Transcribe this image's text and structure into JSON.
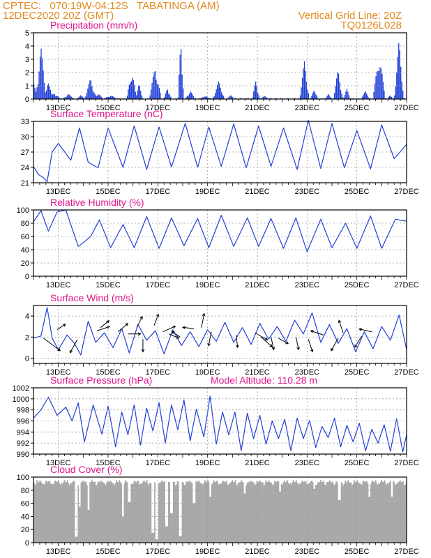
{
  "header": {
    "line1_left": "CPTEC:   070:19W-04:12S   TABATINGA (AM)",
    "line2_left": "12DEC2020 20Z (GMT)",
    "line1_right": "Vertical Grid Line: 20Z",
    "line2_right": "TQ0126L028"
  },
  "colors": {
    "header": "#e08a1e",
    "title": "#e0168c",
    "series": "#1f3fd8",
    "grid": "#9a9a9a",
    "cloud": "#a9a9a9",
    "arrow": "#000000"
  },
  "chart_data": [
    {
      "type": "bar",
      "title": "Precipitation (mm/h)",
      "xlim": [
        0,
        15.0
      ],
      "ylim": [
        0,
        5
      ],
      "yticks": [
        0,
        1,
        2,
        3,
        4,
        5
      ],
      "xticks": [
        "13DEC",
        "15DEC",
        "17DEC",
        "19DEC",
        "21DEC",
        "23DEC",
        "25DEC",
        "27DEC"
      ],
      "bursts": [
        [
          0.03,
          1.3,
          0.3
        ],
        [
          0.3,
          4.1,
          0.22
        ],
        [
          0.58,
          1.4,
          0.22
        ],
        [
          0.85,
          0.5,
          0.25
        ],
        [
          1.4,
          0.4,
          0.25
        ],
        [
          1.9,
          0.3,
          0.2
        ],
        [
          2.3,
          1.6,
          0.25
        ],
        [
          2.6,
          0.5,
          0.2
        ],
        [
          3.1,
          0.3,
          0.3
        ],
        [
          3.95,
          2.4,
          0.2
        ],
        [
          4.25,
          1.2,
          0.15
        ],
        [
          4.9,
          2.6,
          0.25
        ],
        [
          5.4,
          1.0,
          0.15
        ],
        [
          5.93,
          5.0,
          0.12
        ],
        [
          6.3,
          0.7,
          0.2
        ],
        [
          6.9,
          0.3,
          0.2
        ],
        [
          7.45,
          1.4,
          0.25
        ],
        [
          7.95,
          0.3,
          0.2
        ],
        [
          8.95,
          1.6,
          0.15
        ],
        [
          9.3,
          0.25,
          0.2
        ],
        [
          10.9,
          3.0,
          0.2
        ],
        [
          11.3,
          0.9,
          0.15
        ],
        [
          11.85,
          0.4,
          0.15
        ],
        [
          12.25,
          2.3,
          0.2
        ],
        [
          12.6,
          0.8,
          0.15
        ],
        [
          13.35,
          0.6,
          0.2
        ],
        [
          13.9,
          3.7,
          0.25
        ],
        [
          14.35,
          0.3,
          0.15
        ],
        [
          14.7,
          4.5,
          0.2
        ]
      ],
      "baseline": 0.08
    },
    {
      "type": "line",
      "title": "Surface Temperature (nC)",
      "xlim": [
        0,
        15.0
      ],
      "ylim": [
        21,
        33
      ],
      "yticks": [
        21,
        24,
        27,
        30,
        33
      ],
      "xticks": [
        "13DEC",
        "15DEC",
        "17DEC",
        "19DEC",
        "21DEC",
        "23DEC",
        "25DEC",
        "27DEC"
      ],
      "x": [
        0,
        0.2,
        0.4,
        0.55,
        0.75,
        1.0,
        1.5,
        1.85,
        2.2,
        2.6,
        3.0,
        3.6,
        4.05,
        4.55,
        5.05,
        5.55,
        6.1,
        6.6,
        7.05,
        7.55,
        8.05,
        8.55,
        9.05,
        9.55,
        10.05,
        10.6,
        11.05,
        11.55,
        12.0,
        12.5,
        13.0,
        13.55,
        14.0,
        14.5,
        15.0
      ],
      "y": [
        24.2,
        22.6,
        22.0,
        21.2,
        27.0,
        28.7,
        25.4,
        31.7,
        25.0,
        23.9,
        31.7,
        24.0,
        32.1,
        23.6,
        31.9,
        24.1,
        32.6,
        24.0,
        31.9,
        24.2,
        32.5,
        23.9,
        32.1,
        24.2,
        31.7,
        23.6,
        33.2,
        23.8,
        32.6,
        23.9,
        31.2,
        23.7,
        32.3,
        25.7,
        28.5
      ]
    },
    {
      "type": "line",
      "title": "Relative Humidity (%)",
      "xlim": [
        0,
        15.0
      ],
      "ylim": [
        0,
        100
      ],
      "yticks": [
        0,
        20,
        40,
        60,
        80,
        100
      ],
      "xticks": [
        "13DEC",
        "15DEC",
        "17DEC",
        "19DEC",
        "21DEC",
        "23DEC",
        "25DEC",
        "27DEC"
      ],
      "x": [
        0,
        0.3,
        0.6,
        0.95,
        1.3,
        1.8,
        2.05,
        2.3,
        2.65,
        3.1,
        3.6,
        4.05,
        4.55,
        5.05,
        5.55,
        6.05,
        6.6,
        7.05,
        7.55,
        8.05,
        8.6,
        9.05,
        9.55,
        10.05,
        10.55,
        11.0,
        11.55,
        12.0,
        12.55,
        13.0,
        13.55,
        14.0,
        14.55,
        15.0
      ],
      "y": [
        82,
        99,
        68,
        97,
        100,
        45,
        52,
        60,
        85,
        43,
        78,
        43,
        90,
        42,
        88,
        46,
        87,
        43,
        92,
        45,
        88,
        45,
        87,
        42,
        88,
        37,
        86,
        43,
        80,
        42,
        91,
        42,
        86,
        83
      ]
    },
    {
      "type": "line",
      "title": "Surface Wind (m/s)",
      "xlim": [
        0,
        15.0
      ],
      "ylim": [
        -0.5,
        5
      ],
      "yticks": [
        0,
        2,
        4
      ],
      "xticks": [
        "13DEC",
        "15DEC",
        "17DEC",
        "19DEC",
        "21DEC",
        "23DEC",
        "25DEC",
        "27DEC"
      ],
      "x": [
        0,
        0.3,
        0.55,
        0.75,
        1.0,
        1.35,
        1.65,
        1.9,
        2.2,
        2.5,
        2.85,
        3.2,
        3.55,
        3.85,
        4.2,
        4.55,
        4.9,
        5.25,
        5.6,
        5.95,
        6.3,
        6.65,
        7.0,
        7.35,
        7.7,
        8.05,
        8.4,
        8.75,
        9.1,
        9.45,
        9.8,
        10.15,
        10.5,
        10.85,
        11.2,
        11.55,
        11.9,
        12.25,
        12.6,
        12.95,
        13.3,
        13.65,
        14.0,
        14.35,
        14.7,
        15.0
      ],
      "y": [
        1.9,
        2.1,
        4.8,
        1.9,
        0.8,
        2.2,
        1.4,
        0.3,
        3.5,
        1.5,
        2.4,
        1.0,
        2.8,
        0.5,
        3.2,
        1.7,
        2.6,
        0.4,
        2.7,
        1.2,
        2.5,
        1.1,
        2.7,
        1.6,
        3.4,
        1.5,
        2.9,
        1.3,
        3.3,
        1.8,
        3.0,
        1.6,
        3.6,
        2.3,
        4.3,
        1.5,
        3.2,
        1.4,
        2.8,
        0.6,
        2.5,
        0.9,
        3.0,
        1.7,
        4.1,
        0.8
      ],
      "arrows": [
        [
          0.4,
          1.9,
          1.2,
          -0.9
        ],
        [
          0.95,
          2.7,
          0.6,
          0.4
        ],
        [
          1.75,
          1.7,
          -0.5,
          -0.9
        ],
        [
          2.55,
          2.6,
          0.9,
          0.3
        ],
        [
          2.7,
          2.9,
          0.6,
          0.5
        ],
        [
          3.4,
          2.5,
          0.7,
          0.6
        ],
        [
          3.8,
          2.3,
          0.9,
          0.0
        ],
        [
          4.15,
          2.9,
          0.4,
          0.8
        ],
        [
          4.4,
          1.8,
          0.0,
          -0.9
        ],
        [
          4.85,
          3.1,
          0.3,
          0.8
        ],
        [
          5.2,
          2.5,
          0.9,
          0.4
        ],
        [
          5.45,
          2.3,
          0.7,
          -0.3
        ],
        [
          5.9,
          2.0,
          -0.6,
          0.4
        ],
        [
          6.45,
          2.8,
          -0.8,
          0.1
        ],
        [
          6.75,
          2.9,
          0.2,
          1.0
        ],
        [
          7.15,
          2.5,
          -0.2,
          -1.0
        ],
        [
          8.15,
          2.2,
          0.1,
          -0.9
        ],
        [
          8.9,
          2.4,
          0.9,
          -0.5
        ],
        [
          9.15,
          2.0,
          0.8,
          -0.7
        ],
        [
          9.55,
          2.0,
          0.2,
          -0.9
        ],
        [
          9.85,
          1.9,
          0.7,
          -0.4
        ],
        [
          10.55,
          2.0,
          0.2,
          -0.9
        ],
        [
          11.05,
          1.8,
          0.3,
          -0.9
        ],
        [
          11.65,
          2.2,
          -0.9,
          0.3
        ],
        [
          12.25,
          1.9,
          -0.5,
          -0.9
        ],
        [
          12.45,
          2.4,
          -0.3,
          0.9
        ],
        [
          13.2,
          2.1,
          -0.5,
          -0.8
        ],
        [
          13.6,
          2.5,
          -0.9,
          0.2
        ]
      ]
    },
    {
      "type": "line",
      "title": "Surface Pressure (hPa)",
      "subtitle": "Model Altitude: 110.28 m",
      "xlim": [
        0,
        15.0
      ],
      "ylim": [
        990,
        1002
      ],
      "yticks": [
        990,
        992,
        994,
        996,
        998,
        1000,
        1002
      ],
      "xticks": [
        "13DEC",
        "15DEC",
        "17DEC",
        "19DEC",
        "21DEC",
        "23DEC",
        "25DEC",
        "27DEC"
      ],
      "x": [
        0,
        0.3,
        0.6,
        0.95,
        1.3,
        1.55,
        1.8,
        2.05,
        2.4,
        2.75,
        3.0,
        3.3,
        3.55,
        3.8,
        4.05,
        4.3,
        4.55,
        4.8,
        5.05,
        5.3,
        5.55,
        5.8,
        6.05,
        6.3,
        6.55,
        6.85,
        7.1,
        7.35,
        7.6,
        7.85,
        8.1,
        8.35,
        8.6,
        8.85,
        9.1,
        9.35,
        9.6,
        9.85,
        10.1,
        10.35,
        10.6,
        10.85,
        11.1,
        11.35,
        11.6,
        11.85,
        12.1,
        12.35,
        12.6,
        12.85,
        13.1,
        13.35,
        13.6,
        13.85,
        14.1,
        14.35,
        14.6,
        14.85,
        15.0
      ],
      "y": [
        996.5,
        998.0,
        1000.3,
        997.0,
        998.5,
        996.0,
        999.3,
        992.2,
        998.9,
        993.6,
        998.7,
        991.3,
        997.6,
        993.5,
        998.9,
        991.6,
        998.3,
        994.2,
        999.3,
        992.0,
        998.9,
        994.4,
        999.8,
        992.4,
        998.1,
        993.1,
        1000.5,
        991.8,
        997.6,
        993.5,
        997.6,
        990.6,
        997.4,
        992.8,
        997.0,
        991.8,
        996.0,
        992.8,
        996.3,
        990.6,
        996.5,
        992.8,
        996.1,
        991.2,
        995.0,
        993.0,
        996.5,
        991.3,
        995.2,
        992.2,
        995.6,
        990.6,
        994.5,
        992.0,
        995.3,
        990.5,
        996.4,
        990.4,
        993.5
      ]
    },
    {
      "type": "area",
      "title": "Cloud Cover (%)",
      "xlim": [
        0,
        15.0
      ],
      "ylim": [
        0,
        100
      ],
      "yticks": [
        0,
        20,
        40,
        60,
        80,
        100
      ],
      "xticks": [
        "13DEC",
        "15DEC",
        "17DEC",
        "19DEC",
        "21DEC",
        "23DEC",
        "25DEC",
        "27DEC"
      ],
      "base": 96,
      "dips": [
        [
          1.72,
          9
        ],
        [
          1.85,
          55
        ],
        [
          2.2,
          50
        ],
        [
          3.6,
          40
        ],
        [
          3.85,
          62
        ],
        [
          4.8,
          15
        ],
        [
          4.95,
          5
        ],
        [
          5.35,
          25
        ],
        [
          5.55,
          45
        ],
        [
          5.9,
          10
        ],
        [
          6.45,
          60
        ],
        [
          7.1,
          70
        ],
        [
          8.5,
          75
        ],
        [
          9.9,
          78
        ],
        [
          11.3,
          82
        ],
        [
          12.3,
          65
        ],
        [
          13.5,
          70
        ],
        [
          14.4,
          70
        ]
      ]
    }
  ]
}
